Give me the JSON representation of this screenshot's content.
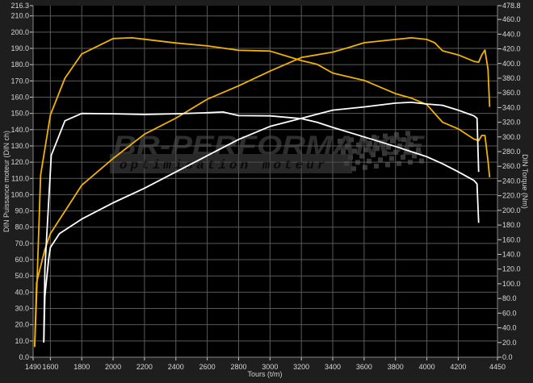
{
  "chart_data": {
    "type": "line",
    "xlabel": "Tours (t/m)",
    "ylabel": "DIN Puissance moteur (DIN ch)",
    "y2label": "DIN Torque (Nm)",
    "xlim": [
      1490,
      4450
    ],
    "ylim": [
      0,
      216.3
    ],
    "y2lim": [
      0,
      478.8
    ],
    "grid": true,
    "x_ticks": [
      "1490",
      "1600",
      "1800",
      "2000",
      "2200",
      "2400",
      "2600",
      "2800",
      "3000",
      "3200",
      "3400",
      "3600",
      "3800",
      "4000",
      "4200",
      "4450"
    ],
    "y_ticks": [
      "216.3",
      "210.0",
      "200.0",
      "190.0",
      "180.0",
      "170.0",
      "160.0",
      "150.0",
      "140.0",
      "130.0",
      "120.0",
      "110.0",
      "100.0",
      "90.0",
      "80.0",
      "70.0",
      "60.0",
      "50.0",
      "40.0",
      "30.0",
      "20.0",
      "10.0",
      "0.0"
    ],
    "y2_ticks": [
      "478.8",
      "460.0",
      "440.0",
      "420.0",
      "400.0",
      "380.0",
      "360.0",
      "340.0",
      "320.0",
      "300.0",
      "280.0",
      "260.0",
      "240.0",
      "220.0",
      "200.0",
      "180.0",
      "160.0",
      "140.0",
      "120.0",
      "100.0",
      "80.0",
      "60.0",
      "40.0",
      "20.0",
      "0.0"
    ],
    "colors": {
      "background": "#1e1e1e",
      "plot": "#000000",
      "grid": "#5a5a5a",
      "yellow": "#f0b400",
      "white": "#ffffff"
    },
    "series": [
      {
        "axis": "right",
        "color": "#f0b400",
        "x": [
          1500,
          1512,
          1538,
          1600,
          1693,
          1800,
          2000,
          2120,
          2200,
          2400,
          2600,
          2800,
          3000,
          3200,
          3300,
          3400,
          3600,
          3800,
          3900,
          4000,
          4100,
          4200,
          4300,
          4330,
          4350,
          4370,
          4390,
          4400
        ],
        "y": [
          14,
          84,
          248,
          330,
          380,
          413,
          434,
          435,
          433,
          428,
          424,
          418,
          417,
          404,
          399,
          387,
          377,
          359,
          353,
          344,
          320,
          311,
          297,
          295,
          302,
          302,
          267,
          245
        ]
      },
      {
        "axis": "left",
        "color": "#f0b400",
        "x": [
          1500,
          1512,
          1564,
          1600,
          1800,
          2000,
          2200,
          2400,
          2600,
          2800,
          3000,
          3200,
          3400,
          3500,
          3600,
          3800,
          3900,
          4000,
          4050,
          4100,
          4200,
          4300,
          4330,
          4350,
          4370,
          4390,
          4400
        ],
        "y": [
          6.5,
          46,
          66,
          76,
          105.8,
          122.3,
          137.2,
          147.1,
          158.7,
          167,
          176,
          184.4,
          187.7,
          190.5,
          193.5,
          195.5,
          196.5,
          195.5,
          193.5,
          188.5,
          186,
          182,
          181.5,
          186,
          189,
          177,
          154
        ]
      },
      {
        "axis": "right",
        "color": "#ffffff",
        "x": [
          1558,
          1565,
          1606,
          1693,
          1800,
          2000,
          2200,
          2400,
          2600,
          2700,
          2800,
          3000,
          3200,
          3300,
          3400,
          3600,
          3800,
          4000,
          4100,
          4200,
          4300,
          4320,
          4330
        ],
        "y": [
          22,
          121,
          275,
          322,
          332,
          331.5,
          330.5,
          331.5,
          333,
          334,
          329,
          328.7,
          325,
          320,
          313,
          300,
          287,
          273,
          263.5,
          252.5,
          240.7,
          236,
          183
        ]
      },
      {
        "axis": "left",
        "color": "#ffffff",
        "x": [
          1558,
          1565,
          1590,
          1600,
          1658,
          1800,
          2000,
          2200,
          2400,
          2600,
          2800,
          3000,
          3200,
          3400,
          3500,
          3600,
          3800,
          3900,
          4000,
          4100,
          4200,
          4300,
          4320,
          4330
        ],
        "y": [
          9,
          37.7,
          61,
          67.5,
          76,
          85,
          95,
          104,
          114,
          124,
          134,
          142,
          147,
          152,
          153,
          154,
          156.3,
          156.8,
          155.8,
          155,
          152,
          148.5,
          147,
          114
        ]
      }
    ]
  },
  "watermark": {
    "brand": "BR-PERFORMANCE",
    "tagline": "optimisation moteur"
  }
}
